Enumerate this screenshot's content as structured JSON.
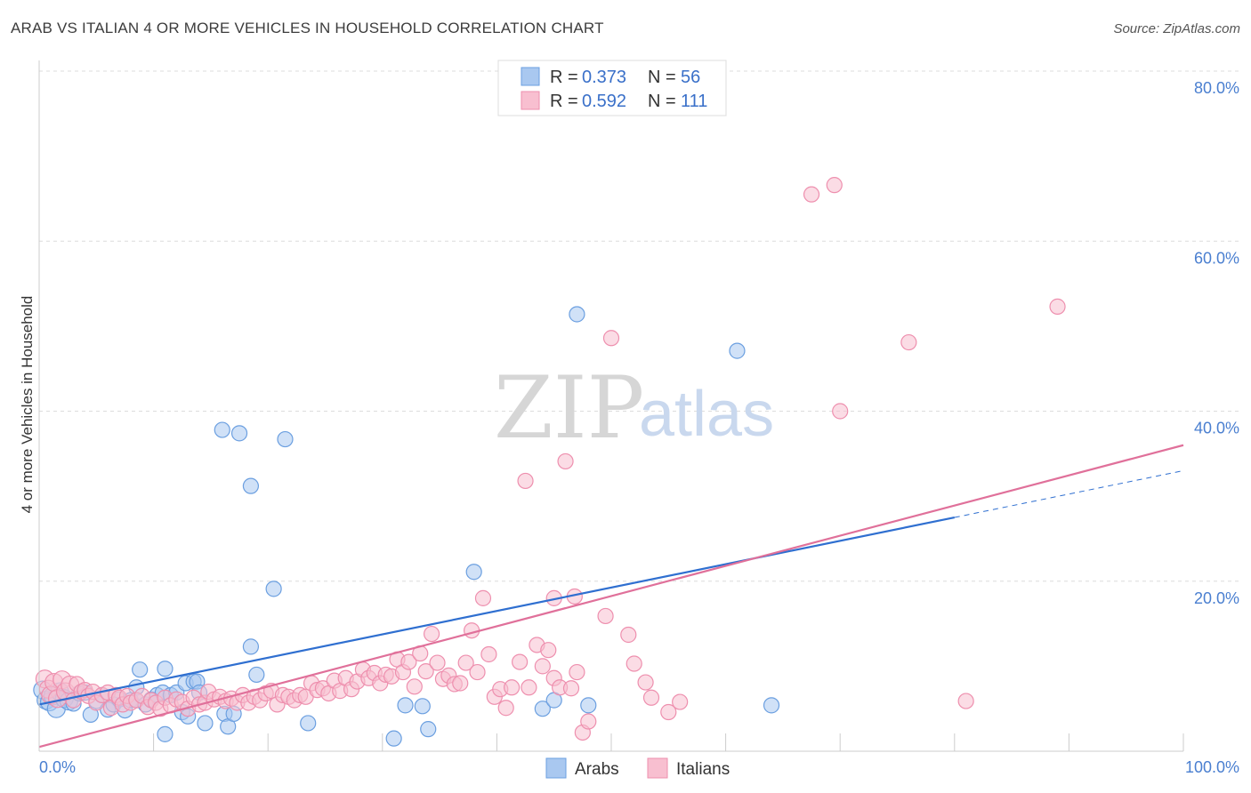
{
  "title": "ARAB VS ITALIAN 4 OR MORE VEHICLES IN HOUSEHOLD CORRELATION CHART",
  "source": "Source: ZipAtlas.com",
  "watermark": {
    "zip": "ZIP",
    "atlas": "atlas"
  },
  "legend": {
    "r_label": "R = ",
    "n_label": "N = ",
    "arabs": {
      "r": "0.373",
      "n": "56",
      "color": "#a9c8f0",
      "stroke": "#6b9fe0"
    },
    "italians": {
      "r": "0.592",
      "n": "111",
      "color": "#f8bfd0",
      "stroke": "#ee8fae"
    }
  },
  "bottom_legend": {
    "arabs": "Arabs",
    "italians": "Italians"
  },
  "chart_data": {
    "type": "scatter",
    "title": "ARAB VS ITALIAN 4 OR MORE VEHICLES IN HOUSEHOLD CORRELATION CHART",
    "xlabel": "",
    "ylabel": "4 or more Vehicles in Household",
    "xlim": [
      0,
      100
    ],
    "ylim": [
      0,
      80
    ],
    "x_tick_labels": [
      "0.0%",
      "100.0%"
    ],
    "y_ticks": [
      20,
      40,
      60,
      80
    ],
    "y_tick_labels": [
      "20.0%",
      "40.0%",
      "60.0%",
      "80.0%"
    ],
    "grid": true,
    "legend_position": "top-center",
    "series": [
      {
        "name": "Arabs",
        "color": "#6b9fe0",
        "fill": "#a9c8f0",
        "trend": {
          "x": [
            0,
            80
          ],
          "y": [
            5.5,
            27.5
          ],
          "dashed_to": [
            100,
            33
          ]
        },
        "points": [
          [
            0.3,
            7.2
          ],
          [
            0.6,
            6.0
          ],
          [
            0.9,
            5.8
          ],
          [
            1.2,
            6.5
          ],
          [
            1.5,
            5.0
          ],
          [
            1.8,
            7.0
          ],
          [
            2.2,
            6.2
          ],
          [
            2.6,
            5.9
          ],
          [
            3.0,
            5.6
          ],
          [
            3.5,
            6.8
          ],
          [
            4.0,
            6.9
          ],
          [
            4.5,
            4.3
          ],
          [
            5.0,
            5.9
          ],
          [
            5.5,
            6.6
          ],
          [
            6.0,
            4.9
          ],
          [
            6.5,
            5.5
          ],
          [
            7.0,
            6.1
          ],
          [
            7.5,
            4.8
          ],
          [
            8.0,
            6.0
          ],
          [
            8.5,
            7.5
          ],
          [
            8.5,
            6.0
          ],
          [
            8.8,
            9.6
          ],
          [
            9.3,
            5.5
          ],
          [
            9.8,
            6.1
          ],
          [
            10.3,
            6.6
          ],
          [
            10.8,
            6.9
          ],
          [
            11.0,
            9.7
          ],
          [
            11.0,
            2.0
          ],
          [
            11.5,
            6.6
          ],
          [
            12.0,
            6.9
          ],
          [
            12.5,
            4.6
          ],
          [
            12.8,
            8.0
          ],
          [
            13.0,
            4.1
          ],
          [
            13.5,
            8.2
          ],
          [
            13.8,
            8.2
          ],
          [
            14.0,
            6.9
          ],
          [
            14.5,
            3.3
          ],
          [
            16.0,
            37.8
          ],
          [
            16.2,
            4.4
          ],
          [
            16.5,
            2.9
          ],
          [
            17.0,
            4.4
          ],
          [
            17.5,
            37.4
          ],
          [
            18.5,
            31.2
          ],
          [
            18.5,
            12.3
          ],
          [
            19.0,
            9.0
          ],
          [
            20.5,
            19.1
          ],
          [
            21.5,
            36.7
          ],
          [
            23.5,
            3.3
          ],
          [
            31.0,
            1.5
          ],
          [
            32.0,
            5.4
          ],
          [
            33.5,
            5.3
          ],
          [
            34.0,
            2.6
          ],
          [
            38.0,
            21.1
          ],
          [
            44.0,
            5.0
          ],
          [
            45.0,
            6.0
          ],
          [
            47.0,
            51.4
          ],
          [
            48.0,
            5.4
          ],
          [
            61.0,
            47.1
          ],
          [
            64.0,
            5.4
          ]
        ]
      },
      {
        "name": "Italians",
        "color": "#ee8fae",
        "fill": "#f8bfd0",
        "trend": {
          "x": [
            0,
            100
          ],
          "y": [
            0.5,
            36.0
          ]
        },
        "points": [
          [
            0.5,
            8.5
          ],
          [
            0.8,
            7.3
          ],
          [
            1.0,
            6.6
          ],
          [
            1.3,
            8.1
          ],
          [
            1.6,
            6.2
          ],
          [
            2.0,
            8.4
          ],
          [
            2.3,
            7.0
          ],
          [
            2.7,
            7.8
          ],
          [
            3.0,
            6.0
          ],
          [
            3.3,
            7.9
          ],
          [
            3.7,
            7.0
          ],
          [
            4.0,
            7.2
          ],
          [
            4.3,
            6.5
          ],
          [
            4.7,
            7.0
          ],
          [
            5.0,
            5.7
          ],
          [
            5.5,
            6.6
          ],
          [
            6.0,
            6.9
          ],
          [
            6.3,
            5.1
          ],
          [
            6.7,
            6.6
          ],
          [
            7.0,
            6.3
          ],
          [
            7.3,
            5.5
          ],
          [
            7.7,
            6.5
          ],
          [
            8.0,
            5.7
          ],
          [
            8.5,
            6.0
          ],
          [
            9.0,
            6.5
          ],
          [
            9.5,
            5.2
          ],
          [
            9.8,
            6.0
          ],
          [
            10.2,
            5.7
          ],
          [
            10.6,
            5.0
          ],
          [
            11.0,
            6.3
          ],
          [
            11.5,
            5.4
          ],
          [
            12.0,
            6.1
          ],
          [
            12.5,
            5.8
          ],
          [
            13.0,
            5.0
          ],
          [
            13.5,
            6.3
          ],
          [
            14.0,
            5.5
          ],
          [
            14.5,
            5.7
          ],
          [
            14.8,
            7.0
          ],
          [
            15.3,
            6.1
          ],
          [
            15.8,
            6.4
          ],
          [
            16.3,
            5.9
          ],
          [
            16.8,
            6.2
          ],
          [
            17.3,
            5.7
          ],
          [
            17.8,
            6.6
          ],
          [
            18.3,
            5.7
          ],
          [
            18.8,
            6.4
          ],
          [
            19.3,
            6.0
          ],
          [
            19.8,
            6.8
          ],
          [
            20.3,
            7.1
          ],
          [
            20.8,
            5.5
          ],
          [
            21.3,
            6.6
          ],
          [
            21.8,
            6.4
          ],
          [
            22.3,
            6.0
          ],
          [
            22.8,
            6.6
          ],
          [
            23.3,
            6.4
          ],
          [
            23.8,
            8.0
          ],
          [
            24.3,
            7.2
          ],
          [
            24.8,
            7.4
          ],
          [
            25.3,
            6.8
          ],
          [
            25.8,
            8.3
          ],
          [
            26.3,
            7.1
          ],
          [
            26.8,
            8.6
          ],
          [
            27.3,
            7.3
          ],
          [
            27.8,
            8.2
          ],
          [
            28.3,
            9.6
          ],
          [
            28.8,
            8.6
          ],
          [
            29.3,
            9.2
          ],
          [
            29.8,
            8.0
          ],
          [
            30.3,
            9.0
          ],
          [
            30.8,
            8.8
          ],
          [
            31.3,
            10.8
          ],
          [
            31.8,
            9.3
          ],
          [
            32.3,
            10.5
          ],
          [
            32.8,
            7.6
          ],
          [
            33.3,
            11.5
          ],
          [
            33.8,
            9.4
          ],
          [
            34.3,
            13.8
          ],
          [
            34.8,
            10.4
          ],
          [
            35.3,
            8.5
          ],
          [
            35.8,
            8.9
          ],
          [
            36.3,
            7.9
          ],
          [
            36.8,
            8.0
          ],
          [
            37.3,
            10.4
          ],
          [
            37.8,
            14.2
          ],
          [
            38.3,
            9.3
          ],
          [
            38.8,
            18.0
          ],
          [
            39.3,
            11.4
          ],
          [
            39.8,
            6.4
          ],
          [
            40.3,
            7.3
          ],
          [
            40.8,
            5.1
          ],
          [
            41.3,
            7.5
          ],
          [
            42.0,
            10.5
          ],
          [
            42.5,
            31.8
          ],
          [
            42.8,
            7.5
          ],
          [
            43.5,
            12.5
          ],
          [
            44.0,
            10.0
          ],
          [
            44.5,
            11.9
          ],
          [
            45.0,
            8.6
          ],
          [
            45.5,
            7.5
          ],
          [
            46.0,
            34.1
          ],
          [
            46.5,
            7.4
          ],
          [
            47.0,
            9.3
          ],
          [
            47.5,
            2.2
          ],
          [
            48.0,
            3.5
          ],
          [
            50.0,
            48.6
          ],
          [
            51.5,
            13.7
          ],
          [
            52.0,
            10.3
          ],
          [
            53.0,
            8.1
          ],
          [
            53.5,
            6.3
          ],
          [
            55.0,
            4.6
          ],
          [
            56.0,
            5.8
          ],
          [
            67.5,
            65.5
          ],
          [
            69.5,
            66.6
          ],
          [
            70.0,
            40.0
          ],
          [
            76.0,
            48.1
          ],
          [
            81.0,
            5.9
          ],
          [
            89.0,
            52.3
          ],
          [
            45.0,
            18.0
          ],
          [
            46.8,
            18.2
          ],
          [
            49.5,
            15.9
          ]
        ]
      }
    ]
  }
}
